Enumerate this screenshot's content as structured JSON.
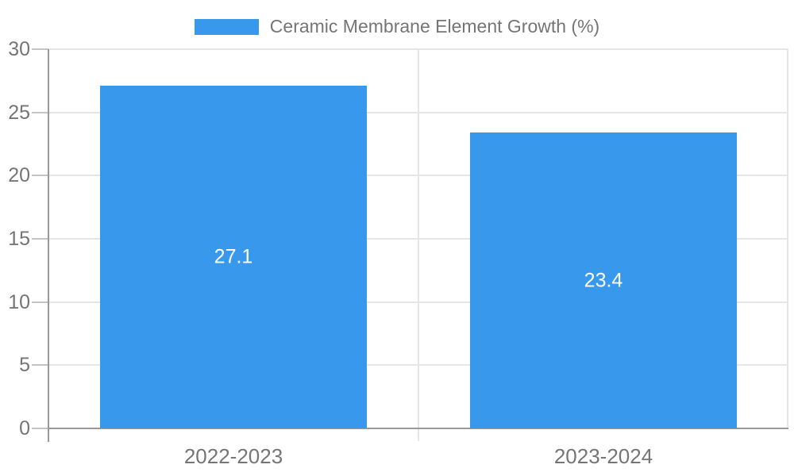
{
  "colors": {
    "bar": "#3899EC",
    "grid": "#E6E6E6",
    "axis": "#999999",
    "tick": "#C4C4C4",
    "text": "#757575",
    "bar_label": "#FFFFFF",
    "background": "#FFFFFF"
  },
  "chart_data": {
    "type": "bar",
    "title": "Ceramic Membrane Element Growth (%)",
    "legend": [
      "Ceramic Membrane Element Growth (%)"
    ],
    "legend_position": "top",
    "categories": [
      "2022-2023",
      "2023-2024"
    ],
    "values": [
      27.1,
      23.4
    ],
    "value_labels": [
      "27.1",
      "23.4"
    ],
    "xlabel": "",
    "ylabel": "",
    "ylim": [
      0,
      30
    ],
    "yticks": [
      0,
      5,
      10,
      15,
      20,
      25,
      30
    ],
    "grid": true,
    "bar_width_fraction": 0.72
  }
}
